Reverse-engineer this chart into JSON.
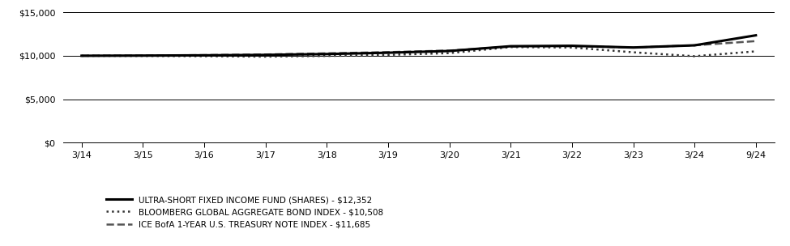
{
  "x_labels": [
    "3/14",
    "3/15",
    "3/16",
    "3/17",
    "3/18",
    "3/19",
    "3/20",
    "3/21",
    "3/22",
    "3/23",
    "3/24",
    "9/24"
  ],
  "x_positions": [
    0,
    1,
    2,
    3,
    4,
    5,
    6,
    7,
    8,
    9,
    10,
    11
  ],
  "ylim": [
    0,
    15000
  ],
  "yticks": [
    0,
    5000,
    10000,
    15000
  ],
  "ytick_labels": [
    "$0",
    "$5,000",
    "$10,000",
    "$15,000"
  ],
  "fund_values": [
    10000,
    10020,
    10050,
    10100,
    10200,
    10350,
    10550,
    11100,
    11150,
    10950,
    11200,
    12352
  ],
  "bloomberg_values": [
    10000,
    9980,
    9950,
    9900,
    9980,
    10100,
    10300,
    11000,
    10950,
    10400,
    9950,
    10508
  ],
  "ice_values": [
    10000,
    10030,
    10080,
    10150,
    10280,
    10420,
    10600,
    11050,
    11100,
    10950,
    11200,
    11685
  ],
  "fund_color": "#000000",
  "bloomberg_color": "#333333",
  "ice_color": "#555555",
  "legend_labels": [
    "ULTRA-SHORT FIXED INCOME FUND (SHARES) - $12,352",
    "BLOOMBERG GLOBAL AGGREGATE BOND INDEX - $10,508",
    "ICE BofA 1-YEAR U.S. TREASURY NOTE INDEX - $11,685"
  ],
  "background_color": "#ffffff",
  "grid_color": "#000000",
  "font_color": "#000000"
}
